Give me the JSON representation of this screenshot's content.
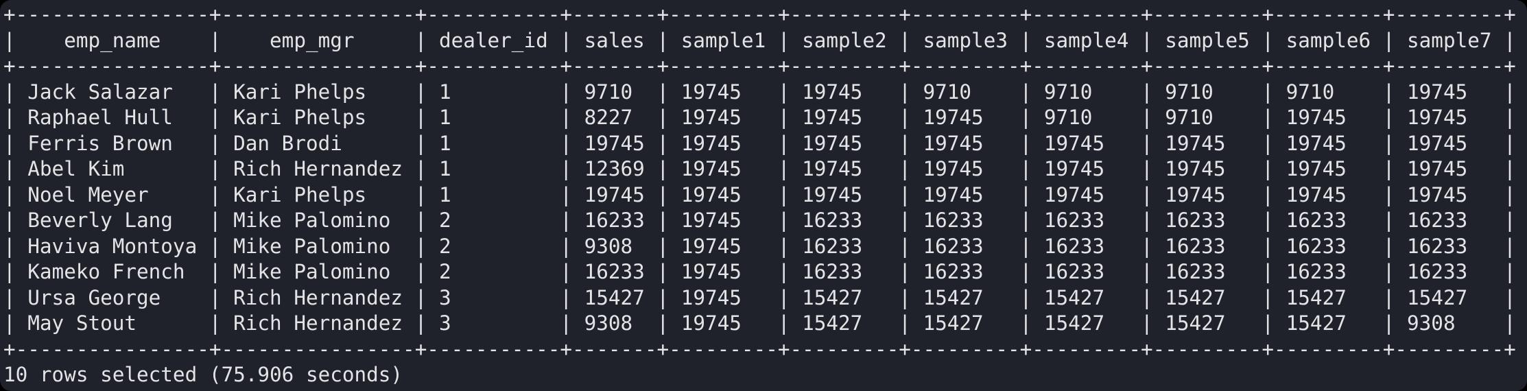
{
  "terminal": {
    "colors": {
      "background": "#1f212b",
      "text": "#e4e4e6",
      "outside": "#000000"
    },
    "query_result": {
      "columns": [
        {
          "name": "emp_name",
          "width": 16
        },
        {
          "name": "emp_mgr",
          "width": 16
        },
        {
          "name": "dealer_id",
          "width": 11
        },
        {
          "name": "sales",
          "width": 7
        },
        {
          "name": "sample1",
          "width": 9
        },
        {
          "name": "sample2",
          "width": 9
        },
        {
          "name": "sample3",
          "width": 9
        },
        {
          "name": "sample4",
          "width": 9
        },
        {
          "name": "sample5",
          "width": 9
        },
        {
          "name": "sample6",
          "width": 9
        },
        {
          "name": "sample7",
          "width": 9
        }
      ],
      "rows": [
        [
          "Jack Salazar",
          "Kari Phelps",
          "1",
          "9710",
          "19745",
          "19745",
          "9710",
          "9710",
          "9710",
          "9710",
          "19745"
        ],
        [
          "Raphael Hull",
          "Kari Phelps",
          "1",
          "8227",
          "19745",
          "19745",
          "19745",
          "9710",
          "9710",
          "19745",
          "19745"
        ],
        [
          "Ferris Brown",
          "Dan Brodi",
          "1",
          "19745",
          "19745",
          "19745",
          "19745",
          "19745",
          "19745",
          "19745",
          "19745"
        ],
        [
          "Abel Kim",
          "Rich Hernandez",
          "1",
          "12369",
          "19745",
          "19745",
          "19745",
          "19745",
          "19745",
          "19745",
          "19745"
        ],
        [
          "Noel Meyer",
          "Kari Phelps",
          "1",
          "19745",
          "19745",
          "19745",
          "19745",
          "19745",
          "19745",
          "19745",
          "19745"
        ],
        [
          "Beverly Lang",
          "Mike Palomino",
          "2",
          "16233",
          "19745",
          "16233",
          "16233",
          "16233",
          "16233",
          "16233",
          "16233"
        ],
        [
          "Haviva Montoya",
          "Mike Palomino",
          "2",
          "9308",
          "19745",
          "16233",
          "16233",
          "16233",
          "16233",
          "16233",
          "16233"
        ],
        [
          "Kameko French",
          "Mike Palomino",
          "2",
          "16233",
          "19745",
          "16233",
          "16233",
          "16233",
          "16233",
          "16233",
          "16233"
        ],
        [
          "Ursa George",
          "Rich Hernandez",
          "3",
          "15427",
          "19745",
          "15427",
          "15427",
          "15427",
          "15427",
          "15427",
          "15427"
        ],
        [
          "May Stout",
          "Rich Hernandez",
          "3",
          "9308",
          "19745",
          "15427",
          "15427",
          "15427",
          "15427",
          "15427",
          "9308"
        ]
      ]
    },
    "status_line": "10 rows selected (75.906 seconds)"
  }
}
